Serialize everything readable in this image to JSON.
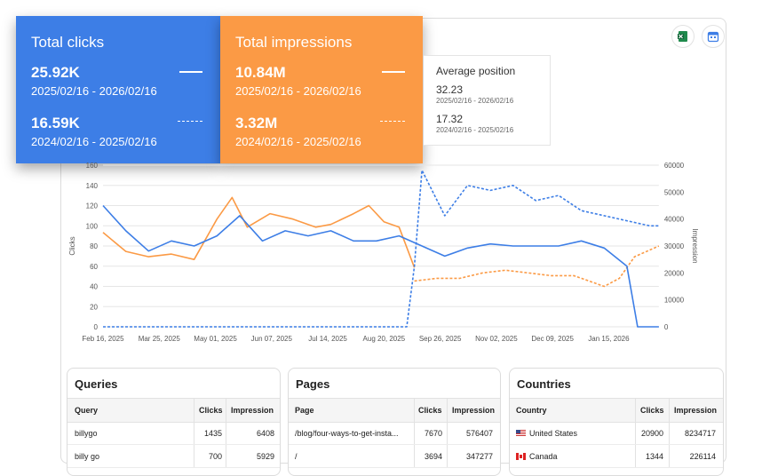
{
  "cards": {
    "clicks": {
      "title": "Total clicks",
      "current": {
        "value": "25.92K",
        "range": "2025/02/16 - 2026/02/16"
      },
      "previous": {
        "value": "16.59K",
        "range": "2024/02/16 - 2025/02/16"
      }
    },
    "impressions": {
      "title": "Total impressions",
      "current": {
        "value": "10.84M",
        "range": "2025/02/16 - 2026/02/16"
      },
      "previous": {
        "value": "3.32M",
        "range": "2024/02/16 - 2025/02/16"
      }
    },
    "position": {
      "title": "Average position",
      "current": {
        "value": "32.23",
        "range": "2025/02/16 - 2026/02/16"
      },
      "previous": {
        "value": "17.32",
        "range": "2024/02/16 - 2025/02/16"
      }
    }
  },
  "toolbar": {
    "icons": [
      "excel-icon",
      "calendar-icon"
    ]
  },
  "colors": {
    "clicks": "#3d7ee6",
    "impressions": "#fb9a45",
    "grid": "#e6e6e6",
    "axis_text": "#555555"
  },
  "chart_data": {
    "type": "line",
    "xlabel": "",
    "ylabel": "Clicks",
    "ylabel_right": "Impression",
    "ylim": [
      0,
      160
    ],
    "ylim_right": [
      0,
      60000
    ],
    "yticks": [
      0,
      20,
      40,
      60,
      80,
      100,
      120,
      140,
      160
    ],
    "yticks_right": [
      0,
      10000,
      20000,
      30000,
      40000,
      50000,
      60000
    ],
    "x_tick_labels": [
      "Feb 16, 2025",
      "Mar 25, 2025",
      "May 01, 2025",
      "Jun 07, 2025",
      "Jul 14, 2025",
      "Aug 20, 2025",
      "Sep 26, 2025",
      "Nov 02, 2025",
      "Dec 09, 2025",
      "Jan 15, 2026"
    ],
    "grid": true,
    "series": [
      {
        "name": "Clicks",
        "axis": "left",
        "style": "solid",
        "color": "#3d7ee6",
        "points": [
          [
            0,
            120
          ],
          [
            15,
            95
          ],
          [
            30,
            75
          ],
          [
            45,
            85
          ],
          [
            60,
            80
          ],
          [
            75,
            90
          ],
          [
            90,
            110
          ],
          [
            105,
            85
          ],
          [
            120,
            95
          ],
          [
            135,
            90
          ],
          [
            150,
            95
          ],
          [
            165,
            85
          ],
          [
            180,
            85
          ],
          [
            195,
            90
          ],
          [
            210,
            80
          ],
          [
            225,
            70
          ],
          [
            240,
            78
          ],
          [
            255,
            82
          ],
          [
            270,
            80
          ],
          [
            285,
            80
          ],
          [
            300,
            80
          ],
          [
            315,
            85
          ],
          [
            330,
            78
          ],
          [
            345,
            60
          ],
          [
            352,
            0
          ],
          [
            366,
            0
          ]
        ]
      },
      {
        "name": "Impression",
        "axis": "right",
        "style": "solid",
        "color": "#fb9a45",
        "points": [
          [
            0,
            35000
          ],
          [
            15,
            28000
          ],
          [
            30,
            26000
          ],
          [
            45,
            27000
          ],
          [
            60,
            25000
          ],
          [
            75,
            40000
          ],
          [
            85,
            48000
          ],
          [
            95,
            37000
          ],
          [
            110,
            42000
          ],
          [
            125,
            40000
          ],
          [
            140,
            37000
          ],
          [
            150,
            38000
          ],
          [
            165,
            42000
          ],
          [
            175,
            45000
          ],
          [
            185,
            39000
          ],
          [
            195,
            37000
          ],
          [
            205,
            22000
          ]
        ]
      },
      {
        "name": "Clicks (previous)",
        "axis": "left",
        "style": "dashed",
        "color": "#3d7ee6",
        "points": [
          [
            0,
            0
          ],
          [
            200,
            0
          ],
          [
            205,
            60
          ],
          [
            210,
            155
          ],
          [
            225,
            110
          ],
          [
            240,
            140
          ],
          [
            255,
            135
          ],
          [
            270,
            140
          ],
          [
            285,
            125
          ],
          [
            300,
            130
          ],
          [
            315,
            115
          ],
          [
            330,
            110
          ],
          [
            345,
            105
          ],
          [
            360,
            100
          ],
          [
            366,
            100
          ]
        ]
      },
      {
        "name": "Impression (previous)",
        "axis": "right",
        "style": "dashed",
        "color": "#fb9a45",
        "points": [
          [
            205,
            17000
          ],
          [
            220,
            18000
          ],
          [
            235,
            18000
          ],
          [
            250,
            20000
          ],
          [
            265,
            21000
          ],
          [
            280,
            20000
          ],
          [
            295,
            19000
          ],
          [
            310,
            19000
          ],
          [
            320,
            17000
          ],
          [
            330,
            15000
          ],
          [
            340,
            18000
          ],
          [
            350,
            26000
          ],
          [
            366,
            30000
          ]
        ]
      }
    ]
  },
  "tables": {
    "queries": {
      "title": "Queries",
      "headers": [
        "Query",
        "Clicks",
        "Impression"
      ],
      "rows": [
        [
          "billygo",
          "1435",
          "6408"
        ],
        [
          "billy go",
          "700",
          "5929"
        ]
      ]
    },
    "pages": {
      "title": "Pages",
      "headers": [
        "Page",
        "Clicks",
        "Impression"
      ],
      "rows": [
        [
          "/blog/four-ways-to-get-insta...",
          "7670",
          "576407"
        ],
        [
          "/",
          "3694",
          "347277"
        ]
      ]
    },
    "countries": {
      "title": "Countries",
      "headers": [
        "Country",
        "Clicks",
        "Impression"
      ],
      "rows": [
        [
          "United States",
          "20900",
          "8234717"
        ],
        [
          "Canada",
          "1344",
          "226114"
        ]
      ]
    }
  }
}
